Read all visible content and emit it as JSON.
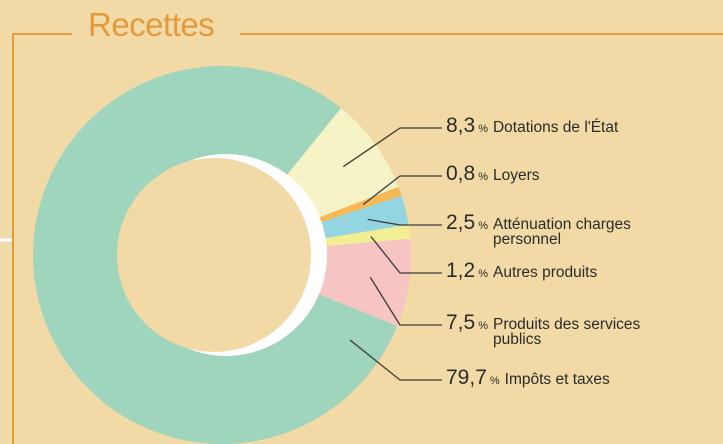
{
  "chart_data": {
    "type": "donut",
    "title": "Recettes",
    "categories": [
      "Dotations de l'État",
      "Loyers",
      "Atténuation charges personnel",
      "Autres produits",
      "Produits des services publics",
      "Impôts et taxes"
    ],
    "values": [
      8.3,
      0.8,
      2.5,
      1.2,
      7.5,
      79.7
    ],
    "value_labels": [
      "8,3",
      "0,8",
      "2,5",
      "1,2",
      "7,5",
      "79,7"
    ],
    "unit": "%",
    "colors": [
      "#f6f4c6",
      "#f7b857",
      "#93d6e2",
      "#f2ee93",
      "#f5c4c3",
      "#9fd4bd"
    ]
  }
}
